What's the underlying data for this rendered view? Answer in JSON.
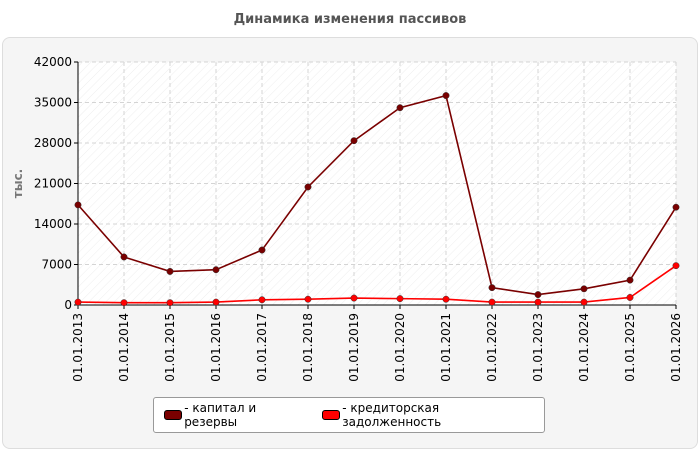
{
  "chart_data": {
    "type": "line",
    "title": "Динамика изменения пассивов",
    "ylabel": "тыс.",
    "xlabel": "",
    "ylim": [
      0,
      42000
    ],
    "yticks": [
      0,
      7000,
      14000,
      21000,
      28000,
      35000,
      42000
    ],
    "categories": [
      "01.01.2013",
      "01.01.2014",
      "01.01.2015",
      "01.01.2016",
      "01.01.2017",
      "01.01.2018",
      "01.01.2019",
      "01.01.2020",
      "01.01.2021",
      "01.01.2022",
      "01.01.2023",
      "01.01.2024",
      "01.01.2025",
      "01.01.2026"
    ],
    "grid": true,
    "legend_position": "bottom",
    "series": [
      {
        "name": "капитал и резервы",
        "color": "#7a0000",
        "values": [
          17300,
          8300,
          5800,
          6100,
          9500,
          20400,
          28400,
          34100,
          36200,
          3000,
          1800,
          2800,
          4300,
          16900
        ]
      },
      {
        "name": "кредиторская задолженность",
        "color": "#ff0000",
        "values": [
          500,
          400,
          400,
          500,
          900,
          1000,
          1200,
          1100,
          1000,
          500,
          500,
          500,
          1300,
          6800
        ]
      }
    ]
  }
}
